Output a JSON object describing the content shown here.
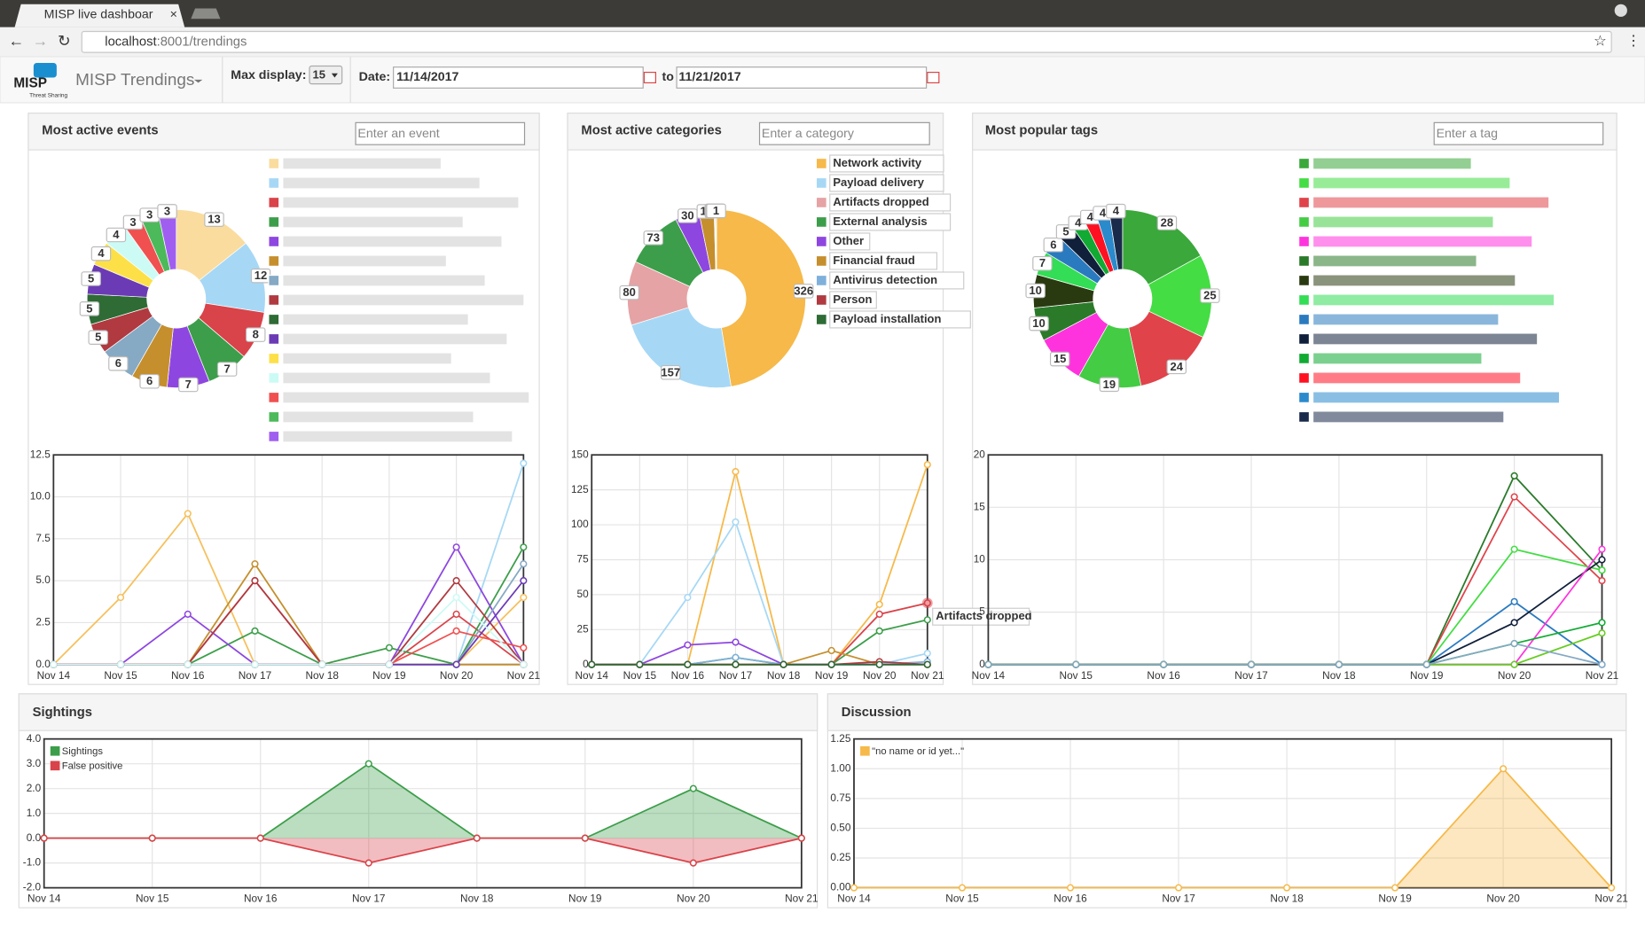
{
  "browser": {
    "tab_title": "MISP live dashboar",
    "url_host": "localhost",
    "url_rest": ":8001/trendings"
  },
  "navbar": {
    "logo": "MISP",
    "logo_sub": "Threat Sharing",
    "brand": "MISP Trendings",
    "max_display_label": "Max display:",
    "max_display": "15",
    "date_label": "Date:",
    "date_from": "11/14/2017",
    "to_label": "to",
    "date_to": "11/21/2017"
  },
  "chart_data": [
    {
      "type": "pie",
      "title": "Most active events",
      "search_placeholder": "Enter an event",
      "values": [
        13,
        12,
        8,
        7,
        7,
        6,
        6,
        5,
        5,
        5,
        4,
        4,
        3,
        3,
        3
      ],
      "colors": [
        "#fadc9e",
        "#a6d8f5",
        "#d9434a",
        "#3c9e4a",
        "#8e46e0",
        "#c58f2d",
        "#86a9c4",
        "#b03a40",
        "#2e6b35",
        "#6b3bb5",
        "#fde047",
        "#ccfbf6",
        "#f05050",
        "#4cba5a",
        "#a05ef0"
      ]
    },
    {
      "type": "line",
      "x": [
        "Nov 14",
        "Nov 15",
        "Nov 16",
        "Nov 17",
        "Nov 18",
        "Nov 19",
        "Nov 20",
        "Nov 21"
      ],
      "ylim": [
        0,
        12.5
      ],
      "yticks": [
        {
          "value": 0,
          "label": "0.0"
        },
        2.5,
        {
          "value": 5,
          "label": "5.0"
        },
        7.5,
        {
          "value": 10,
          "label": "10.0"
        },
        12.5
      ],
      "series": [
        {
          "color": "#f6c05c",
          "values": [
            0,
            4,
            9,
            0,
            0,
            0,
            0,
            4
          ]
        },
        {
          "color": "#a6d8f5",
          "values": [
            0,
            0,
            0,
            0,
            0,
            0,
            0,
            12
          ]
        },
        {
          "color": "#d9434a",
          "values": [
            0,
            0,
            0,
            5,
            0,
            0,
            3,
            0
          ]
        },
        {
          "color": "#3c9e4a",
          "values": [
            0,
            0,
            0,
            2,
            0,
            1,
            0,
            7
          ]
        },
        {
          "color": "#8e46e0",
          "values": [
            0,
            0,
            3,
            0,
            0,
            0,
            7,
            0
          ]
        },
        {
          "color": "#c58f2d",
          "values": [
            0,
            0,
            0,
            6,
            0,
            0,
            0,
            0
          ]
        },
        {
          "color": "#86a9c4",
          "values": [
            0,
            0,
            0,
            0,
            0,
            0,
            0,
            6
          ]
        },
        {
          "color": "#b03a40",
          "values": [
            0,
            0,
            0,
            5,
            0,
            0,
            5,
            0
          ]
        },
        {
          "color": "#6b3bb5",
          "values": [
            0,
            0,
            0,
            0,
            0,
            0,
            0,
            5
          ]
        },
        {
          "color": "#f05050",
          "values": [
            0,
            0,
            0,
            0,
            0,
            0,
            2,
            1
          ]
        },
        {
          "color": "#ccfbf6",
          "values": [
            0,
            0,
            0,
            0,
            0,
            0,
            4,
            0
          ]
        }
      ]
    },
    {
      "type": "pie",
      "title": "Most active categories",
      "search_placeholder": "Enter a category",
      "categories": [
        "Network activity",
        "Payload delivery",
        "Artifacts dropped",
        "External analysis",
        "Other",
        "Financial fraud",
        "Antivirus detection",
        "Person",
        "Payload installation"
      ],
      "values": [
        326,
        157,
        80,
        73,
        30,
        19,
        1,
        1,
        1
      ],
      "colors": [
        "#f6b94a",
        "#a6d8f5",
        "#e5a3a5",
        "#3c9e4a",
        "#8e46e0",
        "#c58f2d",
        "#7fb0dc",
        "#b03a40",
        "#2e6b35"
      ]
    },
    {
      "type": "line",
      "annotation": "Artifacts dropped",
      "x": [
        "Nov 14",
        "Nov 15",
        "Nov 16",
        "Nov 17",
        "Nov 18",
        "Nov 19",
        "Nov 20",
        "Nov 21"
      ],
      "ylim": [
        0,
        150
      ],
      "yticks": [
        0,
        25,
        50,
        75,
        100,
        125,
        150
      ],
      "series": [
        {
          "color": "#f6b94a",
          "values": [
            0,
            0,
            0,
            138,
            0,
            0,
            43,
            143
          ]
        },
        {
          "color": "#a6d8f5",
          "values": [
            0,
            0,
            48,
            102,
            0,
            0,
            0,
            8
          ]
        },
        {
          "color": "#d9434a",
          "values": [
            0,
            0,
            0,
            0,
            0,
            0,
            36,
            44
          ]
        },
        {
          "color": "#3c9e4a",
          "values": [
            0,
            0,
            0,
            5,
            0,
            0,
            24,
            32
          ]
        },
        {
          "color": "#8e46e0",
          "values": [
            0,
            0,
            14,
            16,
            0,
            0,
            0,
            0
          ]
        },
        {
          "color": "#c58f2d",
          "values": [
            0,
            0,
            0,
            0,
            0,
            10,
            0,
            0
          ]
        },
        {
          "color": "#7fb0dc",
          "values": [
            0,
            0,
            0,
            5,
            0,
            0,
            0,
            2
          ]
        },
        {
          "color": "#b03a40",
          "values": [
            0,
            0,
            0,
            0,
            0,
            0,
            2,
            0
          ]
        },
        {
          "color": "#2e6b35",
          "values": [
            0,
            0,
            0,
            0,
            0,
            0,
            0,
            0
          ]
        }
      ]
    },
    {
      "type": "pie",
      "title": "Most popular tags",
      "search_placeholder": "Enter a tag",
      "values": [
        28,
        25,
        24,
        19,
        15,
        10,
        10,
        7,
        6,
        5,
        4,
        4,
        4,
        4
      ],
      "colors": [
        "#3aa83a",
        "#44dd44",
        "#e0434a",
        "#44cc44",
        "#ff33dd",
        "#2a7a2a",
        "#2a3a10",
        "#33dd55",
        "#2a7ac0",
        "#10203a",
        "#11aa33",
        "#ff1122",
        "#2a8acc",
        "#1a2a4a"
      ]
    },
    {
      "type": "line",
      "x": [
        "Nov 14",
        "Nov 15",
        "Nov 16",
        "Nov 17",
        "Nov 18",
        "Nov 19",
        "Nov 20",
        "Nov 21"
      ],
      "ylim": [
        0,
        20
      ],
      "yticks": [
        0,
        5,
        10,
        15,
        20
      ],
      "series": [
        {
          "color": "#2a7a2a",
          "values": [
            0,
            0,
            0,
            0,
            0,
            0,
            18,
            9
          ]
        },
        {
          "color": "#e0434a",
          "values": [
            0,
            0,
            0,
            0,
            0,
            0,
            16,
            8
          ]
        },
        {
          "color": "#44dd44",
          "values": [
            0,
            0,
            0,
            0,
            0,
            0,
            11,
            9
          ]
        },
        {
          "color": "#2a7ac0",
          "values": [
            0,
            0,
            0,
            0,
            0,
            0,
            6,
            0
          ]
        },
        {
          "color": "#10203a",
          "values": [
            0,
            0,
            0,
            0,
            0,
            0,
            4,
            10
          ]
        },
        {
          "color": "#ff33dd",
          "values": [
            0,
            0,
            0,
            0,
            0,
            0,
            0,
            11
          ]
        },
        {
          "color": "#11aa33",
          "values": [
            0,
            0,
            0,
            0,
            0,
            0,
            2,
            4
          ]
        },
        {
          "color": "#66cc22",
          "values": [
            0,
            0,
            0,
            0,
            0,
            0,
            0,
            3
          ]
        },
        {
          "color": "#86a9c4",
          "values": [
            0,
            0,
            0,
            0,
            0,
            0,
            2,
            0
          ]
        }
      ]
    },
    {
      "type": "area",
      "title": "Sightings",
      "legend": "top-left",
      "x": [
        "Nov 14",
        "Nov 15",
        "Nov 16",
        "Nov 17",
        "Nov 18",
        "Nov 19",
        "Nov 20",
        "Nov 21"
      ],
      "ylim": [
        -2,
        4
      ],
      "yticks": [
        {
          "value": -2,
          "label": "-2.0"
        },
        {
          "value": -1,
          "label": "-1.0"
        },
        {
          "value": 0,
          "label": "0.0"
        },
        {
          "value": 1,
          "label": "1.0"
        },
        {
          "value": 2,
          "label": "2.0"
        },
        {
          "value": 3,
          "label": "3.0"
        },
        {
          "value": 4,
          "label": "4.0"
        }
      ],
      "series": [
        {
          "name": "Sightings",
          "color": "#3c9e4a",
          "values": [
            0,
            0,
            0,
            3,
            0,
            0,
            2,
            0
          ]
        },
        {
          "name": "False positive",
          "color": "#d9434a",
          "values": [
            0,
            0,
            0,
            -1,
            0,
            0,
            -1,
            0
          ]
        }
      ]
    },
    {
      "type": "area",
      "title": "Discussion",
      "legend": "top-left",
      "x": [
        "Nov 14",
        "Nov 15",
        "Nov 16",
        "Nov 17",
        "Nov 18",
        "Nov 19",
        "Nov 20",
        "Nov 21"
      ],
      "ylim": [
        0,
        1.25
      ],
      "yticks": [
        {
          "value": 0,
          "label": "0.00"
        },
        {
          "value": 0.25,
          "label": "0.25"
        },
        {
          "value": 0.5,
          "label": "0.50"
        },
        {
          "value": 0.75,
          "label": "0.75"
        },
        {
          "value": 1,
          "label": "1.00"
        },
        {
          "value": 1.25,
          "label": "1.25"
        }
      ],
      "series": [
        {
          "name": "\"no name or id yet...\"",
          "color": "#f6b94a",
          "values": [
            0,
            0,
            0,
            0,
            0,
            0,
            1,
            0
          ]
        }
      ]
    }
  ]
}
